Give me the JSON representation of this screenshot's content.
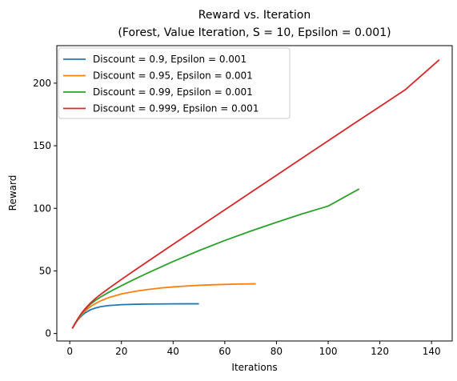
{
  "chart_data": {
    "type": "line",
    "title": "Reward vs. Iteration",
    "subtitle": "(Forest, Value Iteration, S = 10, Epsilon = 0.001)",
    "xlabel": "Iterations",
    "ylabel": "Reward",
    "xlim": [
      -5,
      148
    ],
    "ylim": [
      -6,
      230
    ],
    "xticks": [
      0,
      20,
      40,
      60,
      80,
      100,
      120,
      140
    ],
    "yticks": [
      0,
      50,
      100,
      150,
      200
    ],
    "grid": false,
    "legend_position": "top-left",
    "series": [
      {
        "name": "Discount = 0.9, Epsilon = 0.001",
        "color": "#1f77b4",
        "x": [
          1,
          2,
          3,
          4,
          5,
          6,
          8,
          10,
          12,
          15,
          20,
          25,
          30,
          35,
          40,
          45,
          50
        ],
        "y": [
          4.0,
          7.4,
          10.4,
          12.9,
          14.9,
          16.5,
          18.9,
          20.4,
          21.4,
          22.3,
          23.0,
          23.3,
          23.5,
          23.6,
          23.65,
          23.7,
          23.7
        ]
      },
      {
        "name": "Discount = 0.95, Epsilon = 0.001",
        "color": "#ff7f0e",
        "x": [
          1,
          2,
          3,
          4,
          5,
          6,
          8,
          10,
          12,
          15,
          20,
          25,
          30,
          35,
          40,
          45,
          50,
          55,
          60,
          65,
          72
        ],
        "y": [
          4.0,
          7.6,
          10.8,
          13.6,
          16.0,
          18.0,
          21.4,
          24.0,
          26.1,
          28.6,
          31.6,
          33.6,
          35.1,
          36.3,
          37.2,
          37.9,
          38.5,
          38.9,
          39.2,
          39.5,
          39.7
        ]
      },
      {
        "name": "Discount = 0.99, Epsilon = 0.001",
        "color": "#2ca02c",
        "x": [
          1,
          2,
          3,
          4,
          5,
          6,
          8,
          10,
          12,
          15,
          20,
          25,
          30,
          40,
          50,
          60,
          70,
          80,
          90,
          100,
          112
        ],
        "y": [
          4.0,
          7.8,
          11.2,
          14.3,
          17.0,
          19.3,
          23.3,
          26.5,
          29.2,
          32.8,
          38.2,
          43.3,
          48.2,
          57.5,
          66.2,
          74.3,
          81.8,
          88.8,
          95.6,
          101.8,
          115.5
        ]
      },
      {
        "name": "Discount = 0.999, Epsilon = 0.001",
        "color": "#d62728",
        "x": [
          1,
          2,
          3,
          4,
          5,
          6,
          8,
          10,
          12,
          15,
          20,
          25,
          30,
          40,
          50,
          60,
          70,
          80,
          90,
          100,
          110,
          120,
          130,
          143
        ],
        "y": [
          4.0,
          7.8,
          11.3,
          14.5,
          17.4,
          19.9,
          24.3,
          28.0,
          31.3,
          35.9,
          43.2,
          50.3,
          57.3,
          71.2,
          85.0,
          98.8,
          112.6,
          126.4,
          140.2,
          154.0,
          167.7,
          181.3,
          195.0,
          218.7
        ]
      }
    ]
  }
}
